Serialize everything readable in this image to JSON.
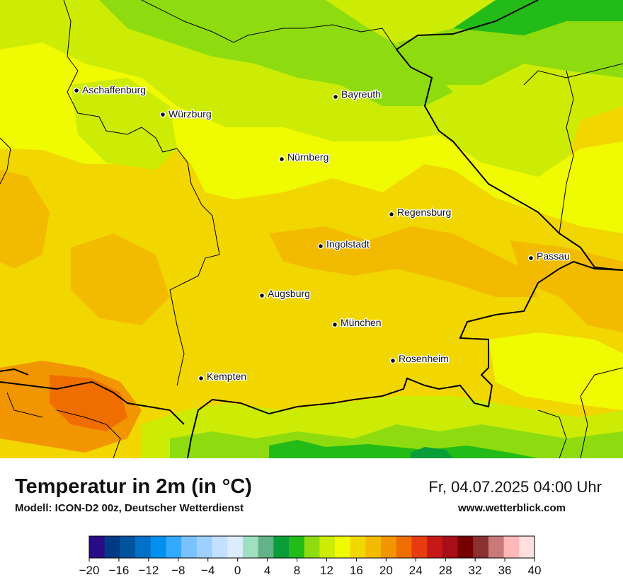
{
  "header": {
    "title": "Temperatur in 2m (in °C)",
    "subtitle": "Modell: ICON-D2 00z, Deutscher Wetterdienst",
    "datetime": "Fr, 04.07.2025 04:00 Uhr",
    "website": "www.wetterblick.com"
  },
  "map": {
    "cities": [
      {
        "name": "Aschaffenburg"
      },
      {
        "name": "Würzburg"
      },
      {
        "name": "Bayreuth"
      },
      {
        "name": "Nürnberg"
      },
      {
        "name": "Regensburg"
      },
      {
        "name": "Ingolstadt"
      },
      {
        "name": "Passau"
      },
      {
        "name": "Augsburg"
      },
      {
        "name": "München"
      },
      {
        "name": "Rosenheim"
      },
      {
        "name": "Kempten"
      }
    ]
  },
  "legend": {
    "tick_labels": [
      "−20",
      "−16",
      "−12",
      "−8",
      "−4",
      "0",
      "4",
      "8",
      "12",
      "16",
      "20",
      "24",
      "28",
      "32",
      "36",
      "40"
    ],
    "colors": [
      "#2a0a86",
      "#003a86",
      "#00549e",
      "#0070c8",
      "#0090f0",
      "#33a8ff",
      "#7ac2ff",
      "#9ed0ff",
      "#c2e0ff",
      "#dcecff",
      "#9ee0c0",
      "#62b488",
      "#0a9e3a",
      "#22bb18",
      "#8edc10",
      "#ccec06",
      "#f0fa00",
      "#f2d600",
      "#f2bb00",
      "#f19500",
      "#f06e00",
      "#e83c10",
      "#c61816",
      "#a80e18",
      "#780000",
      "#8a3030",
      "#c87a7a",
      "#ffb8b8",
      "#ffdede"
    ]
  }
}
